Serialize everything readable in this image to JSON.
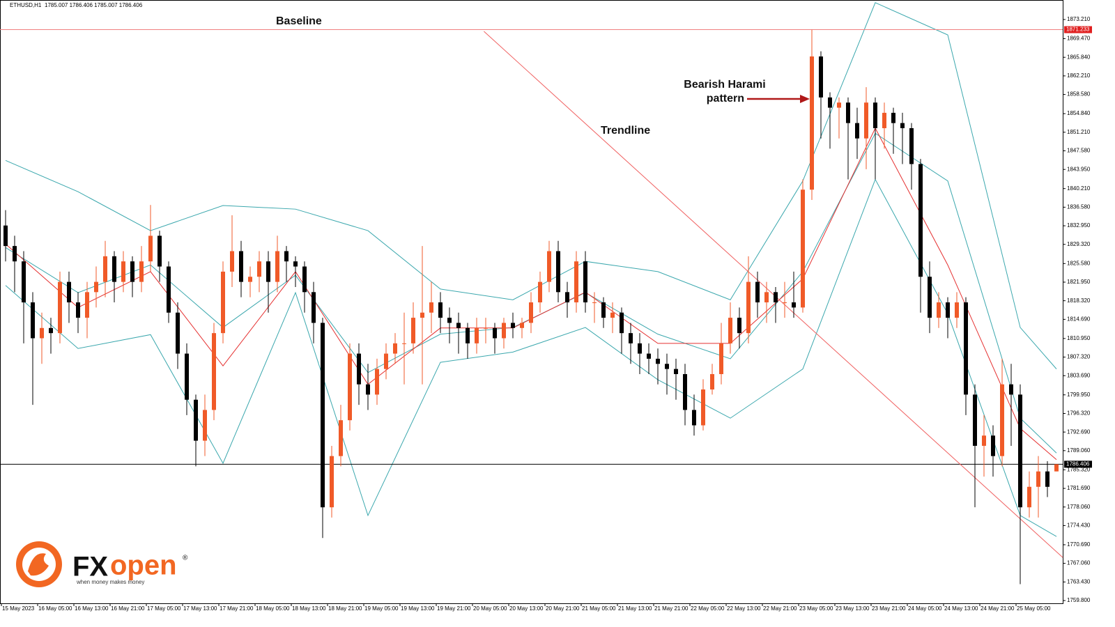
{
  "chart_data": {
    "type": "candlestick",
    "symbol": "ETHUSD,H1",
    "ohlc_text": "1785.007 1786.406 1785.007 1786.406",
    "annotations": [
      "Baseline",
      "Bearish Harami",
      "pattern",
      "Trendline"
    ],
    "up_color": "#f05a28",
    "down_color": "#000000",
    "ylim": [
      1759.26,
      1877.02
    ],
    "yticks": [
      {
        "value": 1873.21,
        "label": "1873.210"
      },
      {
        "value": 1869.47,
        "label": "1869.470"
      },
      {
        "value": 1865.84,
        "label": "1865.840"
      },
      {
        "value": 1862.21,
        "label": "1862.210"
      },
      {
        "value": 1858.58,
        "label": "1858.580"
      },
      {
        "value": 1854.84,
        "label": "1854.840"
      },
      {
        "value": 1851.21,
        "label": "1851.210"
      },
      {
        "value": 1847.58,
        "label": "1847.580"
      },
      {
        "value": 1843.95,
        "label": "1843.950"
      },
      {
        "value": 1840.21,
        "label": "1840.210"
      },
      {
        "value": 1836.58,
        "label": "1836.580"
      },
      {
        "value": 1832.95,
        "label": "1832.950"
      },
      {
        "value": 1829.32,
        "label": "1829.320"
      },
      {
        "value": 1825.58,
        "label": "1825.580"
      },
      {
        "value": 1821.95,
        "label": "1821.950"
      },
      {
        "value": 1818.32,
        "label": "1818.320"
      },
      {
        "value": 1814.69,
        "label": "1814.690"
      },
      {
        "value": 1810.95,
        "label": "1810.950"
      },
      {
        "value": 1807.32,
        "label": "1807.320"
      },
      {
        "value": 1803.69,
        "label": "1803.690"
      },
      {
        "value": 1799.95,
        "label": "1799.950"
      },
      {
        "value": 1796.32,
        "label": "1796.320"
      },
      {
        "value": 1792.69,
        "label": "1792.690"
      },
      {
        "value": 1789.06,
        "label": "1789.060"
      },
      {
        "value": 1785.32,
        "label": "1785.320"
      },
      {
        "value": 1781.69,
        "label": "1781.690"
      },
      {
        "value": 1778.06,
        "label": "1778.060"
      },
      {
        "value": 1774.43,
        "label": "1774.430"
      },
      {
        "value": 1770.69,
        "label": "1770.690"
      },
      {
        "value": 1767.06,
        "label": "1767.060"
      },
      {
        "value": 1763.43,
        "label": "1763.430"
      },
      {
        "value": 1759.8,
        "label": "1759.800"
      }
    ],
    "x_labels": [
      "15 May 2023",
      "16 May 05:00",
      "16 May 13:00",
      "16 May 21:00",
      "17 May 05:00",
      "17 May 13:00",
      "17 May 21:00",
      "18 May 05:00",
      "18 May 13:00",
      "18 May 21:00",
      "19 May 05:00",
      "19 May 13:00",
      "19 May 21:00",
      "20 May 05:00",
      "20 May 13:00",
      "20 May 21:00",
      "21 May 05:00",
      "21 May 13:00",
      "21 May 21:00",
      "22 May 05:00",
      "22 May 13:00",
      "22 May 21:00",
      "23 May 05:00",
      "23 May 13:00",
      "23 May 21:00",
      "24 May 05:00",
      "24 May 13:00",
      "24 May 21:00",
      "25 May 05:00"
    ],
    "baseline": 1871.233,
    "last_price": 1786.406,
    "candles": [
      [
        1833,
        1836,
        1826,
        1829
      ],
      [
        1829,
        1831,
        1820,
        1826
      ],
      [
        1826,
        1828,
        1810,
        1818
      ],
      [
        1818,
        1820,
        1798,
        1811
      ],
      [
        1811,
        1816,
        1806,
        1813
      ],
      [
        1813,
        1815,
        1808,
        1812
      ],
      [
        1812,
        1824,
        1810,
        1822
      ],
      [
        1822,
        1824,
        1814,
        1818
      ],
      [
        1818,
        1820,
        1812,
        1815
      ],
      [
        1815,
        1822,
        1811,
        1820
      ],
      [
        1820,
        1825,
        1817,
        1822
      ],
      [
        1822,
        1830,
        1819,
        1827
      ],
      [
        1827,
        1828,
        1818,
        1822
      ],
      [
        1822,
        1828,
        1820,
        1826
      ],
      [
        1826,
        1827,
        1819,
        1822
      ],
      [
        1822,
        1829,
        1820,
        1826
      ],
      [
        1826,
        1837,
        1824,
        1831
      ],
      [
        1831,
        1832,
        1822,
        1825
      ],
      [
        1825,
        1826,
        1814,
        1816
      ],
      [
        1816,
        1818,
        1805,
        1808
      ],
      [
        1808,
        1810,
        1796,
        1799
      ],
      [
        1799,
        1800,
        1786,
        1791
      ],
      [
        1791,
        1800,
        1788,
        1797
      ],
      [
        1797,
        1814,
        1795,
        1812
      ],
      [
        1812,
        1826,
        1810,
        1824
      ],
      [
        1824,
        1835,
        1821,
        1828
      ],
      [
        1828,
        1830,
        1819,
        1822
      ],
      [
        1822,
        1825,
        1819,
        1823
      ],
      [
        1823,
        1828,
        1820,
        1826
      ],
      [
        1826,
        1828,
        1816,
        1822
      ],
      [
        1822,
        1831,
        1820,
        1828
      ],
      [
        1828,
        1829,
        1822,
        1826
      ],
      [
        1826,
        1827,
        1821,
        1825
      ],
      [
        1825,
        1826,
        1816,
        1820
      ],
      [
        1820,
        1822,
        1810,
        1814
      ],
      [
        1814,
        1815,
        1772,
        1778
      ],
      [
        1778,
        1790,
        1776,
        1788
      ],
      [
        1788,
        1798,
        1786,
        1795
      ],
      [
        1795,
        1810,
        1793,
        1808
      ],
      [
        1808,
        1810,
        1798,
        1802
      ],
      [
        1802,
        1806,
        1797,
        1800
      ],
      [
        1800,
        1807,
        1798,
        1805
      ],
      [
        1805,
        1810,
        1803,
        1808
      ],
      [
        1808,
        1812,
        1806,
        1810
      ],
      [
        1810,
        1816,
        1802,
        1810
      ],
      [
        1810,
        1818,
        1808,
        1815
      ],
      [
        1815,
        1829,
        1802,
        1816
      ],
      [
        1816,
        1822,
        1812,
        1818
      ],
      [
        1818,
        1820,
        1812,
        1815
      ],
      [
        1815,
        1817,
        1810,
        1814
      ],
      [
        1814,
        1816,
        1808,
        1813
      ],
      [
        1813,
        1814,
        1807,
        1810
      ],
      [
        1810,
        1815,
        1808,
        1813
      ],
      [
        1813,
        1815,
        1810,
        1813
      ],
      [
        1813,
        1814,
        1808,
        1811
      ],
      [
        1811,
        1815,
        1809,
        1814
      ],
      [
        1814,
        1816,
        1811,
        1813
      ],
      [
        1813,
        1815,
        1811,
        1814
      ],
      [
        1814,
        1820,
        1812,
        1818
      ],
      [
        1818,
        1824,
        1816,
        1822
      ],
      [
        1822,
        1830,
        1820,
        1828
      ],
      [
        1828,
        1830,
        1818,
        1820
      ],
      [
        1820,
        1822,
        1815,
        1818
      ],
      [
        1818,
        1828,
        1816,
        1826
      ],
      [
        1826,
        1828,
        1816,
        1818
      ],
      [
        1818,
        1820,
        1814,
        1818
      ],
      [
        1818,
        1819,
        1813,
        1815
      ],
      [
        1815,
        1818,
        1812,
        1816
      ],
      [
        1816,
        1817,
        1808,
        1812
      ],
      [
        1812,
        1814,
        1806,
        1810
      ],
      [
        1810,
        1812,
        1804,
        1808
      ],
      [
        1808,
        1810,
        1804,
        1807
      ],
      [
        1807,
        1809,
        1802,
        1806
      ],
      [
        1806,
        1808,
        1800,
        1805
      ],
      [
        1805,
        1807,
        1799,
        1804
      ],
      [
        1804,
        1806,
        1794,
        1797
      ],
      [
        1797,
        1800,
        1792,
        1794
      ],
      [
        1794,
        1803,
        1793,
        1801
      ],
      [
        1801,
        1806,
        1800,
        1804
      ],
      [
        1804,
        1814,
        1802,
        1810
      ],
      [
        1810,
        1818,
        1808,
        1815
      ],
      [
        1815,
        1817,
        1809,
        1812
      ],
      [
        1812,
        1827,
        1810,
        1822
      ],
      [
        1822,
        1824,
        1815,
        1818
      ],
      [
        1818,
        1822,
        1814,
        1820
      ],
      [
        1820,
        1821,
        1814,
        1818
      ],
      [
        1818,
        1822,
        1815,
        1818
      ],
      [
        1818,
        1824,
        1815,
        1817
      ],
      [
        1817,
        1842,
        1816,
        1840
      ],
      [
        1840,
        1871.2,
        1838,
        1866
      ],
      [
        1866,
        1867,
        1850,
        1858
      ],
      [
        1858,
        1859,
        1848,
        1856
      ],
      [
        1856,
        1858,
        1850,
        1857
      ],
      [
        1857,
        1858,
        1842,
        1853
      ],
      [
        1853,
        1856,
        1846,
        1850
      ],
      [
        1850,
        1860,
        1844,
        1857
      ],
      [
        1857,
        1858,
        1842,
        1852
      ],
      [
        1852,
        1857,
        1848,
        1855
      ],
      [
        1855,
        1856,
        1847,
        1853
      ],
      [
        1853,
        1855,
        1845,
        1852
      ],
      [
        1852,
        1853,
        1840,
        1845
      ],
      [
        1845,
        1846,
        1816,
        1823
      ],
      [
        1823,
        1826,
        1812,
        1815
      ],
      [
        1815,
        1820,
        1813,
        1818
      ],
      [
        1818,
        1819,
        1811,
        1815
      ],
      [
        1815,
        1820,
        1813,
        1818
      ],
      [
        1818,
        1819,
        1796,
        1800
      ],
      [
        1800,
        1802,
        1778,
        1790
      ],
      [
        1790,
        1796,
        1784,
        1792
      ],
      [
        1792,
        1794,
        1784,
        1788
      ],
      [
        1788,
        1807,
        1786,
        1802
      ],
      [
        1802,
        1806,
        1790,
        1800
      ],
      [
        1800,
        1802,
        1763,
        1778
      ],
      [
        1778,
        1785,
        1776,
        1782
      ],
      [
        1782,
        1788,
        1776,
        1785
      ],
      [
        1785,
        1787,
        1780,
        1782
      ],
      [
        1785.007,
        1786.406,
        1785.007,
        1786.406
      ]
    ],
    "indicator_x": [
      0,
      8,
      16,
      24,
      32,
      40,
      48,
      56,
      64,
      72,
      80,
      88,
      96,
      104,
      112,
      116
    ],
    "upper_band": [
      1845.7,
      1839.6,
      1832,
      1836.9,
      1836.2,
      1832,
      1820.6,
      1818.5,
      1826,
      1824,
      1818.5,
      1841.7,
      1876.5,
      1870.2,
      1813.1,
      1805
    ],
    "middle_band": [
      1828.7,
      1819.9,
      1825.3,
      1813.1,
      1823.3,
      1804.3,
      1811.8,
      1813.1,
      1819.9,
      1811.8,
      1807,
      1824,
      1851,
      1841.7,
      1795.4,
      1788.6
    ],
    "lower_band": [
      1821.3,
      1809,
      1811.7,
      1786.6,
      1819.9,
      1776.4,
      1806.3,
      1808.3,
      1813.1,
      1802.9,
      1795.4,
      1805,
      1842,
      1815.8,
      1776.4,
      1772.3
    ],
    "moving_average": [
      1829.4,
      1817,
      1824,
      1805.6,
      1824,
      1802,
      1813,
      1813,
      1820,
      1810,
      1810,
      1822.6,
      1852,
      1825.3,
      1793.4,
      1787.3
    ],
    "band_color": "#3aa7ad",
    "ma_color": "#e53030",
    "trendline_color": "#f06060",
    "trendline": {
      "x": [
        52.8,
        116.7
      ],
      "y": [
        1870.9,
        1768.2
      ]
    }
  },
  "logo": {
    "brand_1": "FX",
    "brand_2": "open",
    "mark": "®",
    "tagline": "when money makes money"
  }
}
